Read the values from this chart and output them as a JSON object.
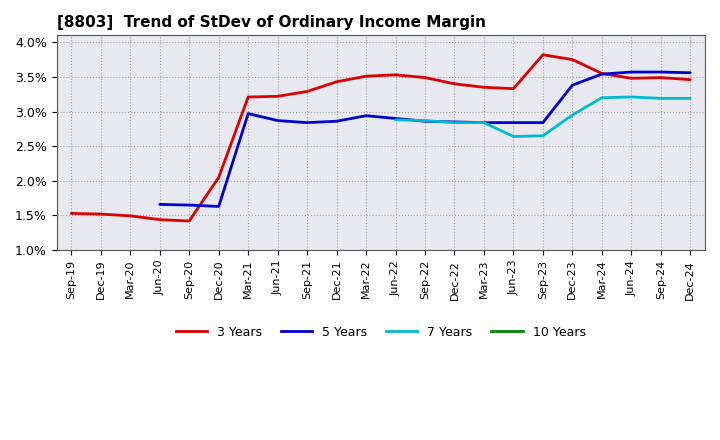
{
  "title": "[8803]  Trend of StDev of Ordinary Income Margin",
  "ylim": [
    0.01,
    0.041
  ],
  "yticks": [
    0.01,
    0.015,
    0.02,
    0.025,
    0.03,
    0.035,
    0.04
  ],
  "background_color": "#ffffff",
  "plot_bg_color": "#e8e8f0",
  "grid_color": "#999999",
  "legend_labels": [
    "3 Years",
    "5 Years",
    "7 Years",
    "10 Years"
  ],
  "legend_colors": [
    "#dd0000",
    "#0000cc",
    "#00bbcc",
    "#008800"
  ],
  "x_labels": [
    "Sep-19",
    "Dec-19",
    "Mar-20",
    "Jun-20",
    "Sep-20",
    "Dec-20",
    "Mar-21",
    "Jun-21",
    "Sep-21",
    "Dec-21",
    "Mar-22",
    "Jun-22",
    "Sep-22",
    "Dec-22",
    "Mar-23",
    "Jun-23",
    "Sep-23",
    "Dec-23",
    "Mar-24",
    "Jun-24",
    "Sep-24",
    "Dec-24"
  ],
  "series_3y": [
    0.0153,
    0.0152,
    0.01495,
    0.0144,
    0.0142,
    0.0205,
    0.0321,
    0.0322,
    0.0329,
    0.0343,
    0.0351,
    0.0353,
    0.0349,
    0.034,
    0.0335,
    0.0333,
    0.0382,
    0.0375,
    0.0355,
    0.0348,
    0.0349,
    0.0346
  ],
  "series_5y": [
    null,
    null,
    null,
    0.0166,
    0.0165,
    0.0163,
    0.0297,
    0.0287,
    0.0284,
    0.0286,
    0.0294,
    0.029,
    0.0286,
    0.0285,
    0.0284,
    0.0284,
    0.0284,
    0.0338,
    0.0354,
    0.0357,
    0.0357,
    0.0356
  ],
  "series_7y": [
    null,
    null,
    null,
    null,
    null,
    null,
    null,
    null,
    null,
    null,
    null,
    0.0288,
    0.0287,
    0.0284,
    0.0284,
    0.0264,
    0.0265,
    0.0295,
    0.032,
    0.0321,
    0.0319,
    0.0319
  ],
  "series_10y": [
    null,
    null,
    null,
    null,
    null,
    null,
    null,
    null,
    null,
    null,
    null,
    null,
    null,
    null,
    null,
    null,
    null,
    null,
    null,
    null,
    null,
    null
  ]
}
